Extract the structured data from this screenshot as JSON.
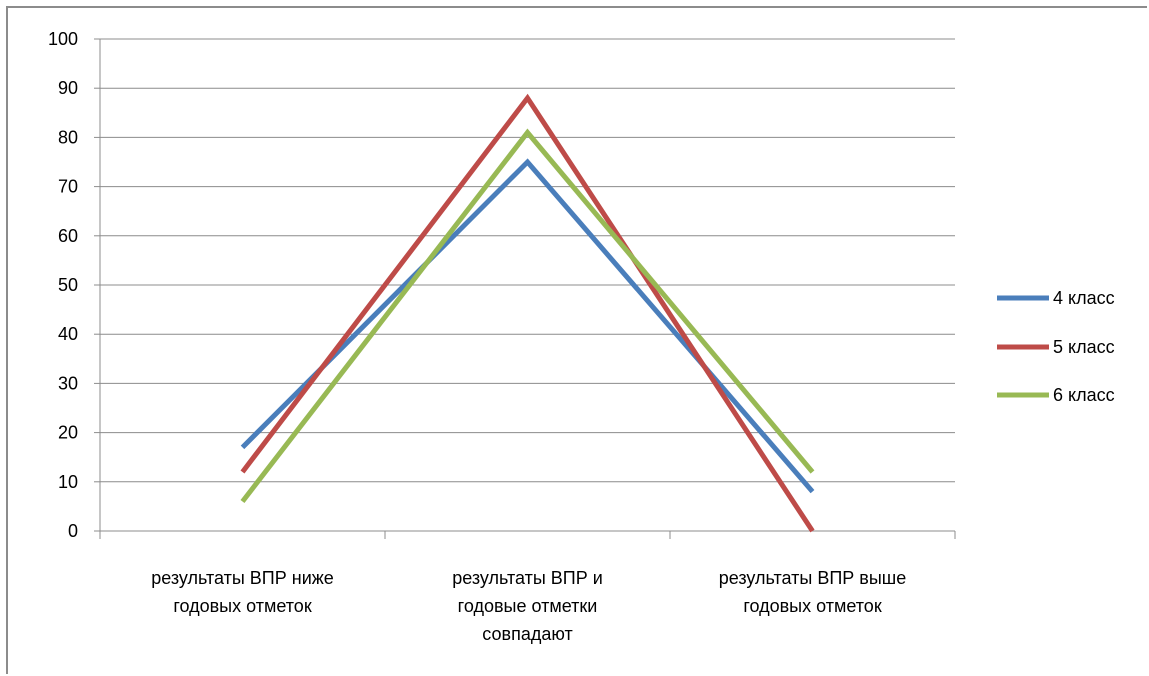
{
  "chart_data": {
    "type": "line",
    "title": "",
    "xlabel": "",
    "ylabel": "",
    "ylim": [
      0,
      100
    ],
    "yticks": [
      0,
      10,
      20,
      30,
      40,
      50,
      60,
      70,
      80,
      90,
      100
    ],
    "grid": true,
    "legend_position": "right",
    "categories": [
      [
        "результаты ВПР ниже",
        "годовых отметок"
      ],
      [
        "результаты ВПР и",
        "годовые отметки",
        "совпадают"
      ],
      [
        "результаты ВПР выше",
        "годовых отметок"
      ]
    ],
    "series": [
      {
        "name": "4 класс",
        "color": "#4a7ebb",
        "values": [
          17,
          75,
          8
        ]
      },
      {
        "name": "5 класс",
        "color": "#be4b48",
        "values": [
          12,
          88,
          0
        ]
      },
      {
        "name": "6 класс",
        "color": "#98b954",
        "values": [
          6,
          81,
          12
        ]
      }
    ]
  }
}
